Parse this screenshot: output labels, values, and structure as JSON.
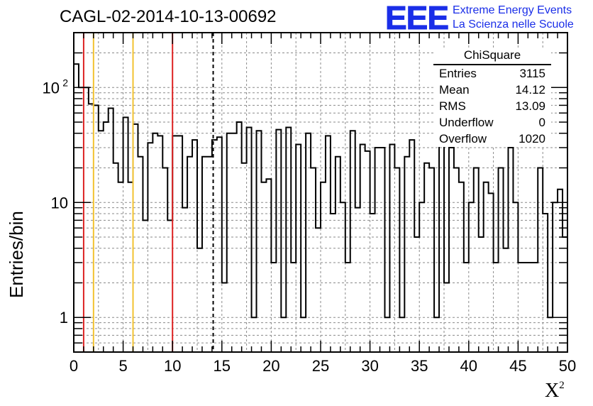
{
  "page": {
    "title": "CAGL-02-2014-10-13-00692",
    "logo": {
      "mark": "EEE",
      "line1": "Extreme Energy Events",
      "line2": "La Scienza nelle Scuole"
    }
  },
  "stats_box": {
    "title": "ChiSquare",
    "rows": [
      {
        "key": "Entries",
        "value": "3115"
      },
      {
        "key": "Mean",
        "value": "14.12"
      },
      {
        "key": "RMS",
        "value": "13.09"
      },
      {
        "key": "Underflow",
        "value": "0"
      },
      {
        "key": "Overflow",
        "value": "1020"
      }
    ]
  },
  "chart_data": {
    "type": "histogram",
    "xlabel": "X",
    "xlabel_superscript": "2",
    "ylabel": "Entries/bin",
    "xlim": [
      0,
      50
    ],
    "ylim": [
      0.5,
      300
    ],
    "yscale": "log",
    "grid": true,
    "bin_width": 0.5,
    "x_ticks": [
      0,
      5,
      10,
      15,
      20,
      25,
      30,
      35,
      40,
      45,
      50
    ],
    "y_ticks": [
      {
        "value": 1,
        "label": "1",
        "sup": ""
      },
      {
        "value": 10,
        "label": "10",
        "sup": ""
      },
      {
        "value": 100,
        "label": "10",
        "sup": "2"
      }
    ],
    "values": [
      160,
      100,
      100,
      72,
      70,
      42,
      50,
      66,
      22,
      15,
      55,
      15,
      48,
      25,
      7,
      33,
      40,
      38,
      20,
      7,
      38,
      38,
      9,
      25,
      35,
      4,
      25,
      25,
      35,
      37,
      2,
      40,
      40,
      50,
      22,
      45,
      1,
      42,
      15,
      16,
      3,
      43,
      1,
      45,
      3,
      32,
      1,
      40,
      20,
      6,
      15,
      38,
      8,
      25,
      10,
      3,
      42,
      9,
      32,
      28,
      8,
      30,
      30,
      1,
      32,
      20,
      1,
      25,
      35,
      5,
      10,
      22,
      20,
      1,
      48,
      2,
      30,
      20,
      15,
      3,
      10,
      20,
      5,
      15,
      12,
      3,
      20,
      4,
      30,
      10,
      3,
      3,
      3,
      3,
      20,
      8,
      1,
      10,
      13,
      5,
      25,
      10,
      6,
      13,
      12,
      4,
      5,
      1,
      20,
      7,
      22,
      6,
      4,
      1,
      5,
      3,
      3,
      10,
      9,
      15
    ],
    "vertical_lines": [
      {
        "x": 1,
        "color": "#dd2222",
        "style": "solid"
      },
      {
        "x": 2,
        "color": "#f2c230",
        "style": "solid"
      },
      {
        "x": 6,
        "color": "#f2c230",
        "style": "solid"
      },
      {
        "x": 10,
        "color": "#dd2222",
        "style": "solid"
      },
      {
        "x": 14.12,
        "color": "#000000",
        "style": "dashed"
      }
    ]
  }
}
